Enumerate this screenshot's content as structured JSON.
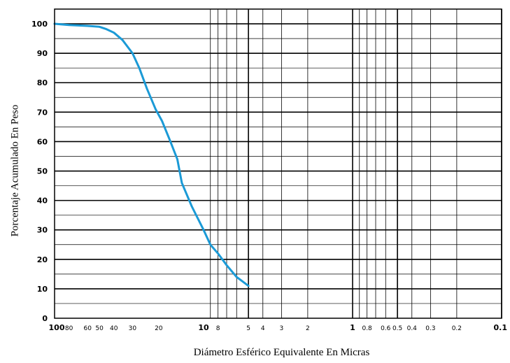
{
  "chart_data": {
    "type": "line",
    "xlabel": "Diámetro Esférico Equivalente En Micras",
    "ylabel": "Porcentaje Acumulado En Peso",
    "x_scale": "log",
    "x_reversed": true,
    "xlim": [
      100,
      0.1
    ],
    "ylim": [
      0,
      105
    ],
    "grid": true,
    "x_ticks": [
      {
        "value": 100,
        "label": "100",
        "major": true
      },
      {
        "value": 80,
        "label": "80",
        "major": false
      },
      {
        "value": 60,
        "label": "60",
        "major": false
      },
      {
        "value": 50,
        "label": "50",
        "major": false
      },
      {
        "value": 40,
        "label": "40",
        "major": false
      },
      {
        "value": 30,
        "label": "30",
        "major": false
      },
      {
        "value": 20,
        "label": "20",
        "major": false
      },
      {
        "value": 10,
        "label": "10",
        "major": true
      },
      {
        "value": 8,
        "label": "8",
        "major": false
      },
      {
        "value": 5,
        "label": "5",
        "major": false
      },
      {
        "value": 4,
        "label": "4",
        "major": false
      },
      {
        "value": 3,
        "label": "3",
        "major": false
      },
      {
        "value": 2,
        "label": "2",
        "major": false
      },
      {
        "value": 1,
        "label": "1",
        "major": true
      },
      {
        "value": 0.8,
        "label": "0.8",
        "major": false
      },
      {
        "value": 0.6,
        "label": "0.6",
        "major": false
      },
      {
        "value": 0.5,
        "label": "0.5",
        "major": false
      },
      {
        "value": 0.4,
        "label": "0.4",
        "major": false
      },
      {
        "value": 0.3,
        "label": "0.3",
        "major": false
      },
      {
        "value": 0.2,
        "label": "0.2",
        "major": false
      },
      {
        "value": 0.1,
        "label": "0.1",
        "major": true
      }
    ],
    "y_ticks": [
      0,
      10,
      20,
      30,
      40,
      50,
      60,
      70,
      80,
      90,
      100
    ],
    "series": [
      {
        "color": "#1b9ad6",
        "points": [
          {
            "x": 100,
            "y": 100
          },
          {
            "x": 80,
            "y": 99.6
          },
          {
            "x": 60,
            "y": 99.3
          },
          {
            "x": 50,
            "y": 99
          },
          {
            "x": 45,
            "y": 98.2
          },
          {
            "x": 40,
            "y": 97
          },
          {
            "x": 35,
            "y": 94.5
          },
          {
            "x": 30,
            "y": 90
          },
          {
            "x": 27,
            "y": 85
          },
          {
            "x": 24,
            "y": 78
          },
          {
            "x": 21,
            "y": 71
          },
          {
            "x": 19,
            "y": 67
          },
          {
            "x": 17,
            "y": 61
          },
          {
            "x": 15,
            "y": 54
          },
          {
            "x": 14,
            "y": 46
          },
          {
            "x": 12,
            "y": 38
          },
          {
            "x": 10,
            "y": 30
          },
          {
            "x": 9,
            "y": 25
          },
          {
            "x": 8,
            "y": 22
          },
          {
            "x": 7,
            "y": 18
          },
          {
            "x": 6,
            "y": 14
          },
          {
            "x": 5,
            "y": 11
          }
        ]
      }
    ]
  }
}
